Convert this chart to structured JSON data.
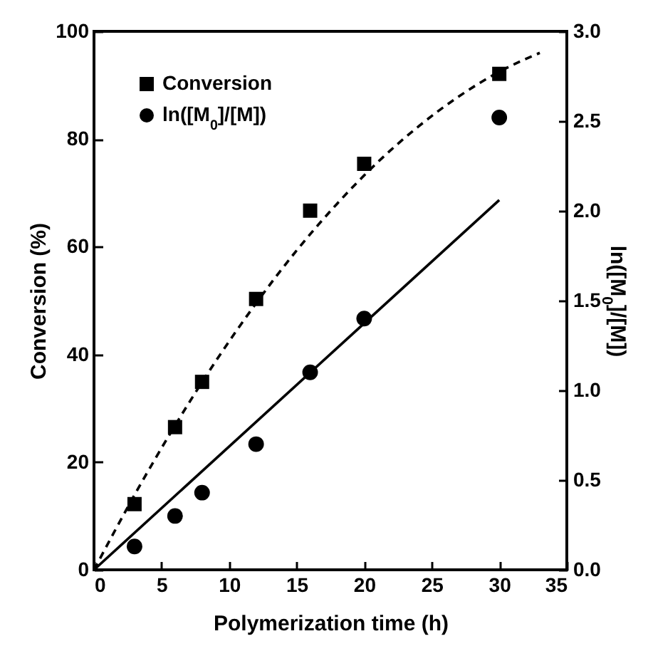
{
  "chart_data": {
    "type": "scatter",
    "xlabel": "Polymerization time (h)",
    "ylabel": "Conversion (%)",
    "y2label": "ln([M$_{0}$]/[M])",
    "xlim": [
      0,
      35
    ],
    "xticks": [
      0,
      5,
      10,
      15,
      20,
      25,
      30,
      35
    ],
    "ylim": [
      0,
      100
    ],
    "yticks": [
      0,
      20,
      40,
      60,
      80,
      100
    ],
    "y2lim": [
      0,
      3
    ],
    "y2ticks": [
      {
        "value": 0,
        "label": "0.0"
      },
      0.5,
      {
        "value": 1,
        "label": "1.0"
      },
      1.5,
      {
        "value": 2,
        "label": "2.0"
      },
      2.5,
      {
        "value": 3,
        "label": "3.0"
      }
    ],
    "legend": "top left",
    "grid": false,
    "series": [
      {
        "type": "line",
        "line_style": "dashed",
        "marker": "none",
        "color": "#000000",
        "x": [
          0,
          3,
          6,
          9,
          12,
          15,
          18,
          21,
          24,
          27,
          30,
          33
        ],
        "values": [
          0,
          13.9,
          26.8,
          38.7,
          49.5,
          59.3,
          68.0,
          75.7,
          82.3,
          87.9,
          92.5,
          96.0
        ]
      },
      {
        "type": "line",
        "line_style": "solid",
        "marker": "none",
        "color": "#000000",
        "axis": "y2",
        "x": [
          0,
          30
        ],
        "values": [
          0,
          2.06
        ]
      },
      {
        "name": "Conversion",
        "type": "scatter",
        "marker": "square",
        "color": "#000000",
        "x": [
          3,
          6,
          8,
          12,
          16,
          20,
          30
        ],
        "values": [
          12.2,
          26.5,
          34.9,
          50.3,
          66.7,
          75.4,
          92.1
        ]
      },
      {
        "name": "ln([M$_{0}$]/[M])",
        "type": "scatter",
        "marker": "circle",
        "color": "#000000",
        "axis": "y2",
        "x": [
          3,
          6,
          8,
          12,
          16,
          20,
          30
        ],
        "values": [
          0.13,
          0.3,
          0.43,
          0.7,
          1.1,
          1.4,
          2.52
        ]
      }
    ]
  }
}
